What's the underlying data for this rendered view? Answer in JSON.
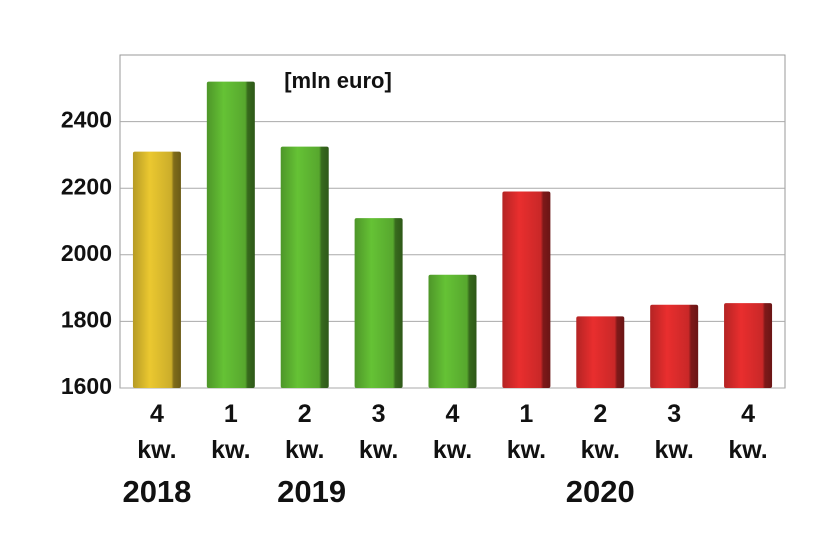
{
  "chart_data": {
    "type": "bar",
    "annotation": "[mln euro]",
    "categories": [
      "4 kw.",
      "1 kw.",
      "2 kw.",
      "3 kw.",
      "4 kw.",
      "1 kw.",
      "2 kw.",
      "3 kw.",
      "4 kw."
    ],
    "values": [
      2310,
      2520,
      2325,
      2110,
      1940,
      2190,
      1815,
      1850,
      1855
    ],
    "colors": [
      "#d6b62c",
      "#5cb030",
      "#5cb030",
      "#5cb030",
      "#5cb030",
      "#d42a2a",
      "#d42a2a",
      "#d42a2a",
      "#d42a2a"
    ],
    "groups": [
      "2018",
      "2019",
      "2020"
    ],
    "ylim": [
      1600,
      2600
    ],
    "yticks": [
      1600,
      1800,
      2000,
      2200,
      2400
    ],
    "grid": true
  }
}
